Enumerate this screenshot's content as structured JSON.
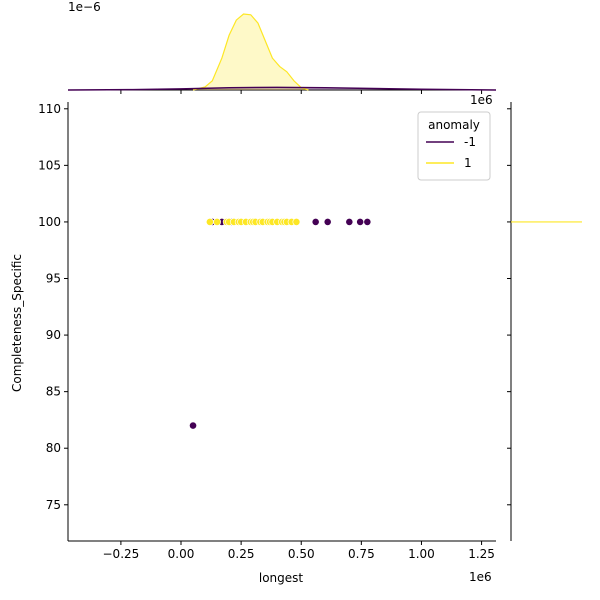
{
  "chart_data": {
    "type": "scatter",
    "title": "",
    "xlabel": "longest",
    "ylabel": "Completeness_Specific",
    "x_offset_label": "1e6",
    "xlim": [
      -0.47,
      1.31
    ],
    "ylim": [
      71.8,
      110.6
    ],
    "x_ticks": [
      -0.25,
      0.0,
      0.25,
      0.5,
      0.75,
      1.0,
      1.25
    ],
    "x_tick_labels": [
      "−0.25",
      "0.00",
      "0.25",
      "0.50",
      "0.75",
      "1.00",
      "1.25"
    ],
    "y_ticks": [
      75,
      80,
      85,
      90,
      95,
      100,
      105,
      110
    ],
    "y_tick_labels": [
      "75",
      "80",
      "85",
      "90",
      "95",
      "100",
      "105",
      "110"
    ],
    "grid": false,
    "legend": {
      "title": "anomaly",
      "placement": "top-right",
      "entries": [
        {
          "label": "-1",
          "color": "#440154"
        },
        {
          "label": "1",
          "color": "#fde725"
        }
      ]
    },
    "series": [
      {
        "name": "-1",
        "color": "#440154",
        "points": [
          [
            0.05,
            82
          ],
          [
            0.13,
            100
          ],
          [
            0.17,
            100
          ],
          [
            0.21,
            100
          ],
          [
            0.56,
            100
          ],
          [
            0.61,
            100
          ],
          [
            0.7,
            100
          ],
          [
            0.745,
            100
          ],
          [
            0.775,
            100
          ]
        ]
      },
      {
        "name": "1",
        "color": "#fde725",
        "points": [
          [
            0.12,
            100
          ],
          [
            0.15,
            100
          ],
          [
            0.19,
            100
          ],
          [
            0.2,
            100
          ],
          [
            0.22,
            100
          ],
          [
            0.24,
            100
          ],
          [
            0.25,
            100
          ],
          [
            0.27,
            100
          ],
          [
            0.29,
            100
          ],
          [
            0.3,
            100
          ],
          [
            0.31,
            100
          ],
          [
            0.33,
            100
          ],
          [
            0.34,
            100
          ],
          [
            0.36,
            100
          ],
          [
            0.37,
            100
          ],
          [
            0.38,
            100
          ],
          [
            0.4,
            100
          ],
          [
            0.42,
            100
          ],
          [
            0.43,
            100
          ],
          [
            0.44,
            100
          ],
          [
            0.46,
            100
          ],
          [
            0.48,
            100
          ]
        ]
      }
    ],
    "top_marginal": {
      "type": "kde",
      "offset_label": "1e−6",
      "yellow_density": [
        [
          0.05,
          0.0
        ],
        [
          0.1,
          0.04
        ],
        [
          0.13,
          0.12
        ],
        [
          0.17,
          0.42
        ],
        [
          0.2,
          0.72
        ],
        [
          0.23,
          0.92
        ],
        [
          0.26,
          1.0
        ],
        [
          0.29,
          0.99
        ],
        [
          0.32,
          0.88
        ],
        [
          0.35,
          0.65
        ],
        [
          0.38,
          0.42
        ],
        [
          0.41,
          0.31
        ],
        [
          0.44,
          0.24
        ],
        [
          0.47,
          0.12
        ],
        [
          0.5,
          0.03
        ],
        [
          0.53,
          0.0
        ]
      ],
      "purple_density": [
        [
          -0.47,
          0.0
        ],
        [
          -0.2,
          0.005
        ],
        [
          0.0,
          0.015
        ],
        [
          0.2,
          0.03
        ],
        [
          0.4,
          0.035
        ],
        [
          0.6,
          0.03
        ],
        [
          0.8,
          0.02
        ],
        [
          1.0,
          0.01
        ],
        [
          1.31,
          0.0
        ]
      ]
    },
    "right_marginal": {
      "type": "kde",
      "value": 100
    }
  }
}
